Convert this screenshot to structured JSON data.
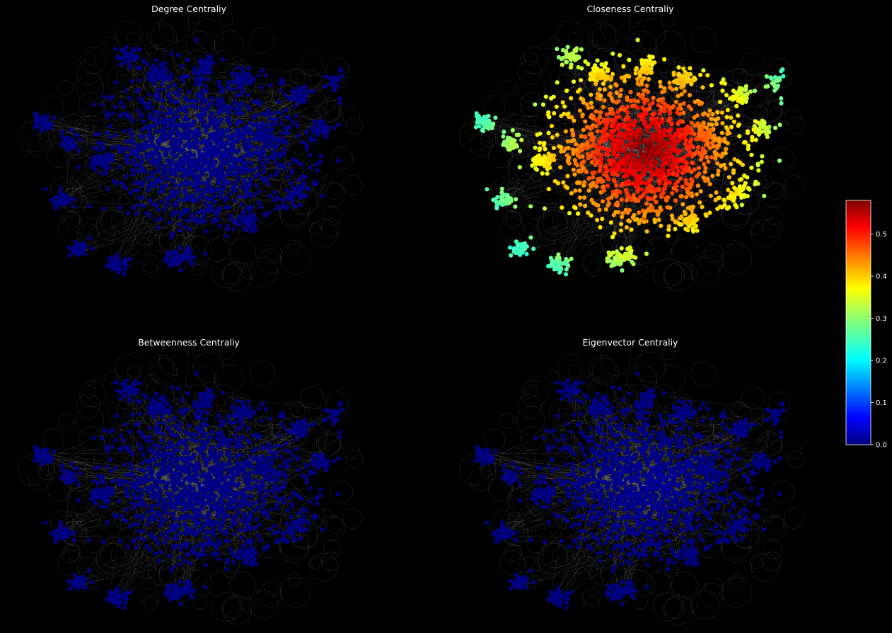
{
  "figure": {
    "background": "#000000",
    "node_default_color": "#000099",
    "edge_color": "#cfcfcf"
  },
  "chart_data": [
    {
      "type": "scatter",
      "subtype": "network-graph",
      "title": "Degree Centraliy",
      "node_value_range": [
        0.0,
        0.02
      ],
      "grid": false
    },
    {
      "type": "scatter",
      "subtype": "network-graph",
      "title": "Closeness Centraliy",
      "node_value_range": [
        0.25,
        0.58
      ],
      "grid": false
    },
    {
      "type": "scatter",
      "subtype": "network-graph",
      "title": "Betweenness Centraliy",
      "node_value_range": [
        0.0,
        0.01
      ],
      "grid": false
    },
    {
      "type": "scatter",
      "subtype": "network-graph",
      "title": "Eigenvector Centraliy",
      "node_value_range": [
        0.0,
        0.03
      ],
      "grid": false
    }
  ],
  "colorbar": {
    "colormap": "jet",
    "range": [
      0.0,
      0.58
    ],
    "ticks": [
      "0.0",
      "0.1",
      "0.2",
      "0.3",
      "0.4",
      "0.5"
    ],
    "tick_values": [
      0.0,
      0.1,
      0.2,
      0.3,
      0.4,
      0.5
    ]
  }
}
